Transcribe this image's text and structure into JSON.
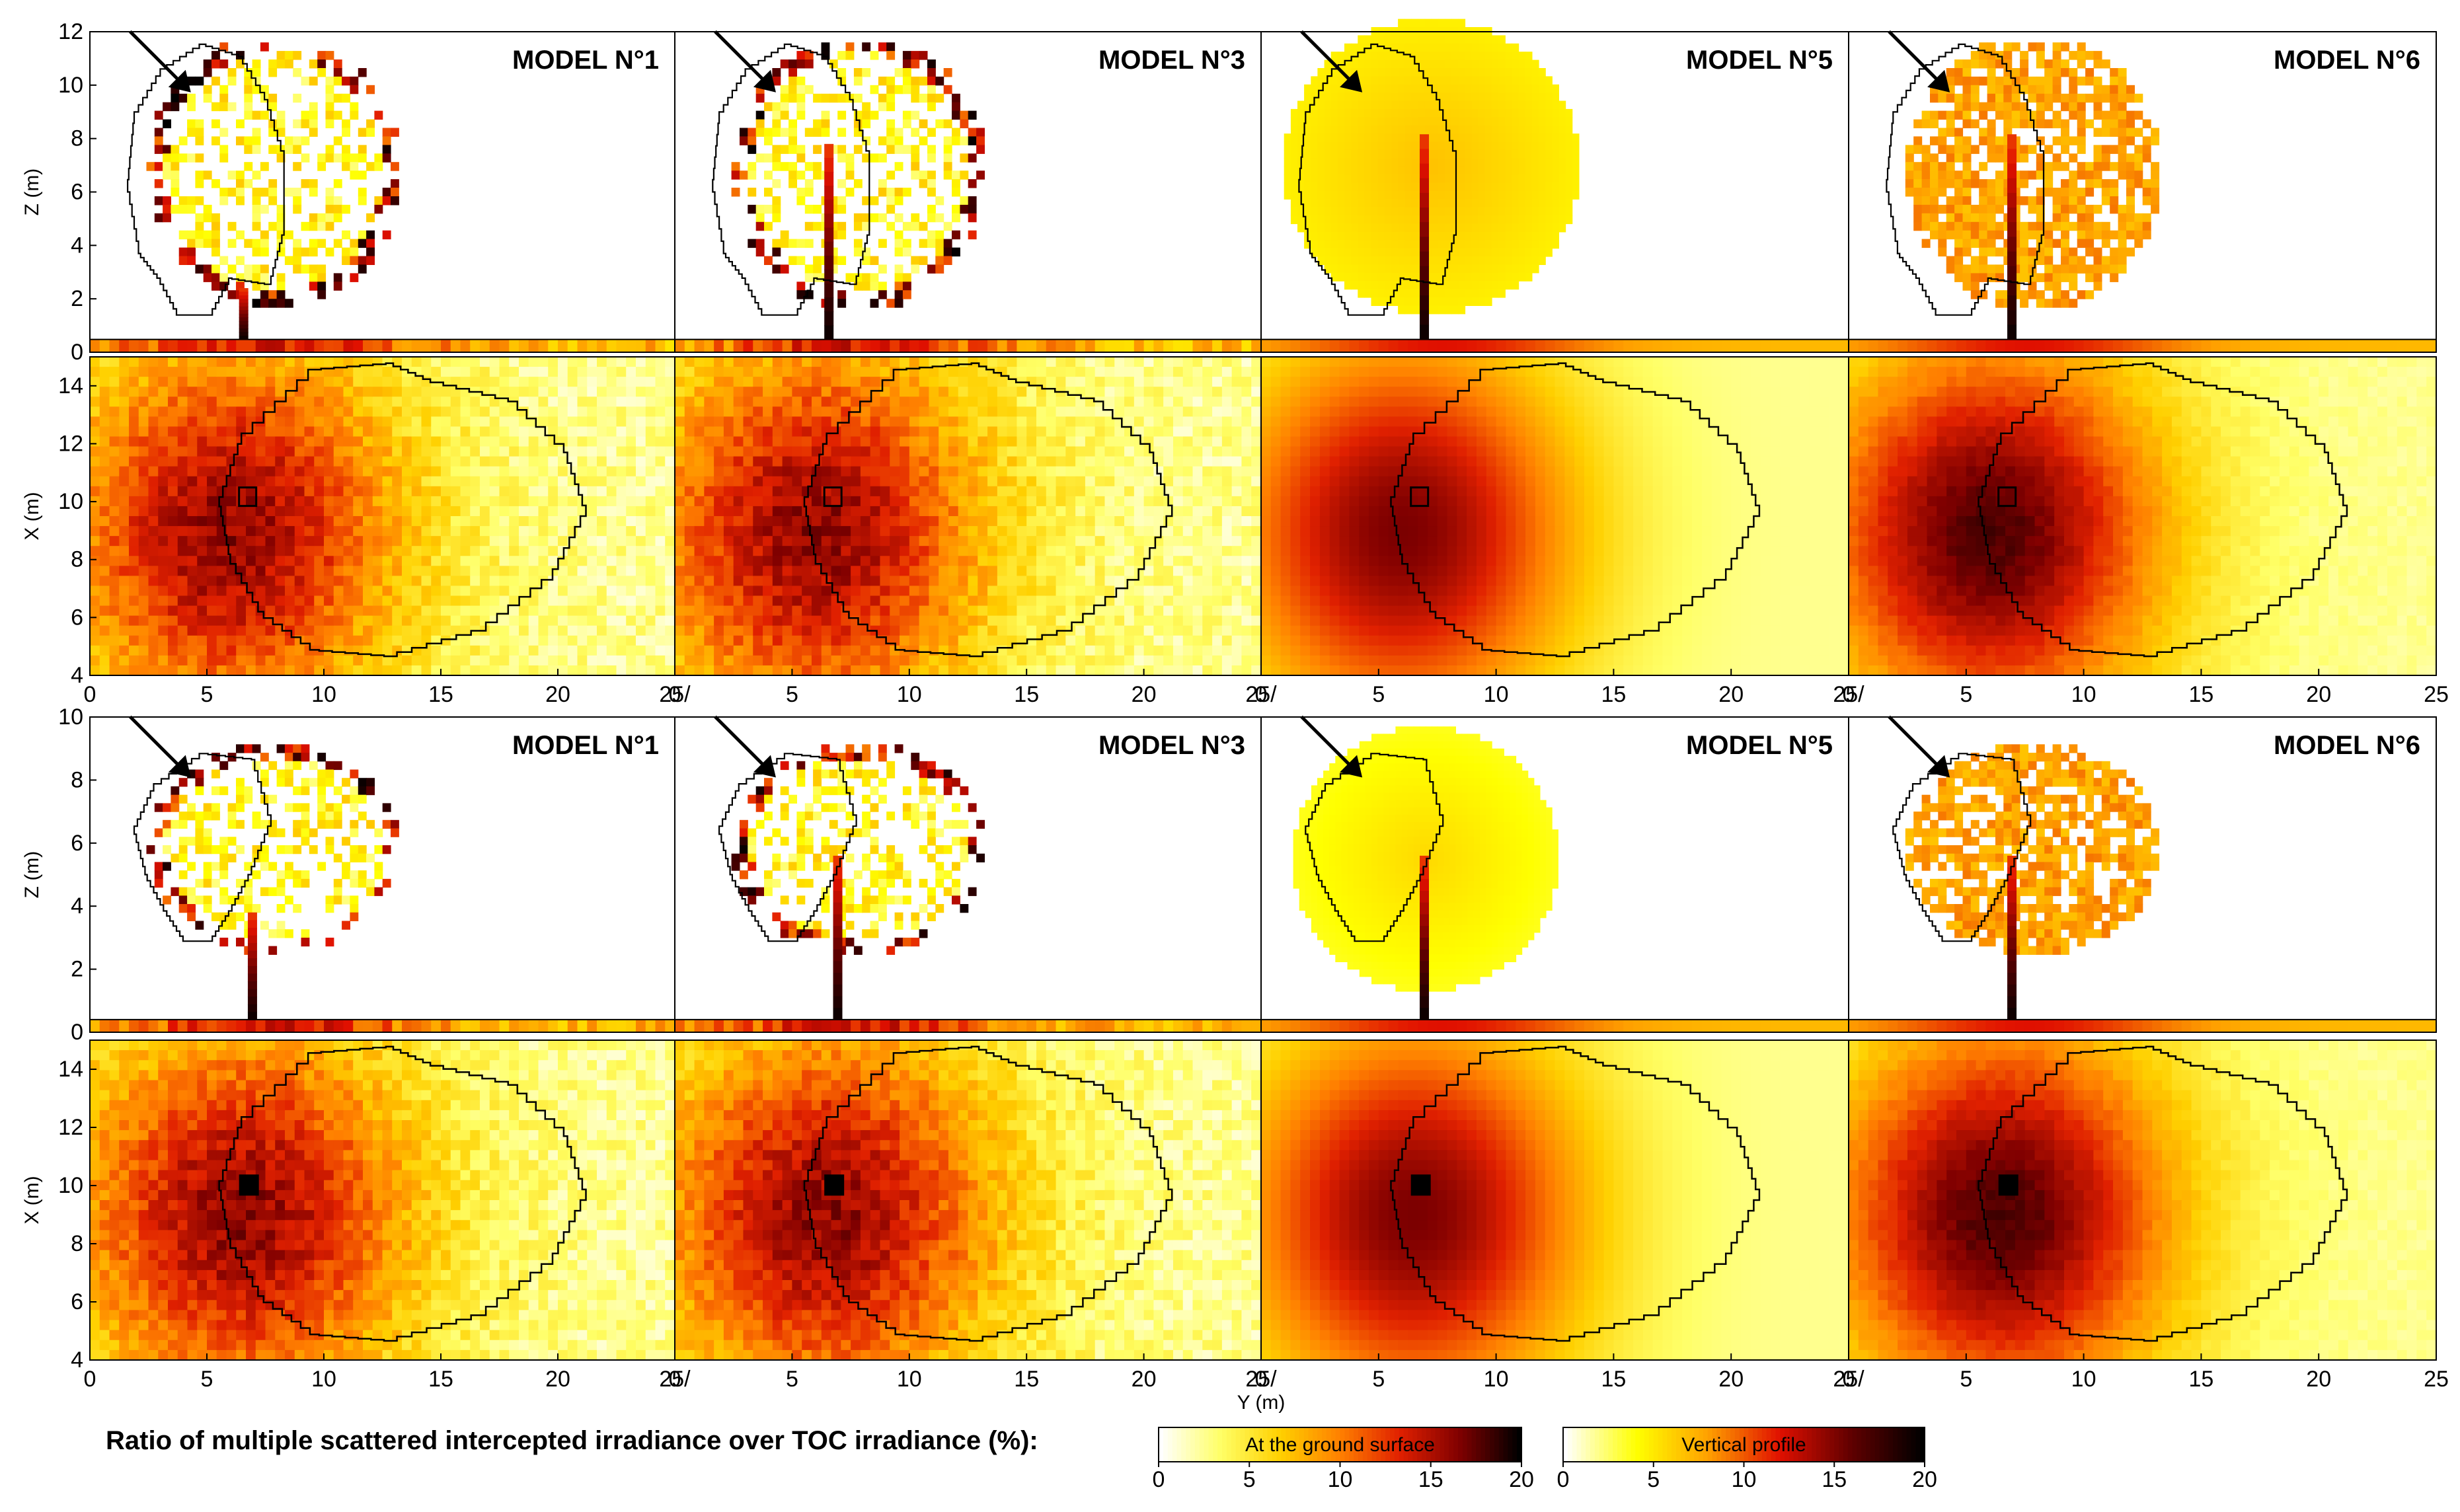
{
  "chart_data": {
    "type": "heatmap",
    "title": "Ratio of multiple scattered intercepted irradiance over TOC irradiance (%):",
    "model_labels": [
      "MODEL N°1",
      "MODEL N°3",
      "MODEL N°5",
      "MODEL N°6"
    ],
    "ylabel_side": "Z (m)",
    "ylabel_top": "X (m)",
    "xlabel": "Y (m)",
    "rows": [
      {
        "kind": "side",
        "ylim": [
          0,
          12
        ],
        "y_ticks": [
          "0",
          "2",
          "4",
          "6",
          "8",
          "10",
          "12"
        ],
        "y_tick_values": [
          0,
          2,
          4,
          6,
          8,
          10,
          12
        ]
      },
      {
        "kind": "top",
        "ylim": [
          4,
          15
        ],
        "y_ticks": [
          "4",
          "6",
          "8",
          "10",
          "12",
          "14"
        ],
        "y_tick_values": [
          4,
          6,
          8,
          10,
          12,
          14
        ],
        "x_ticks": [
          "0",
          "5",
          "10",
          "15",
          "20",
          "25/",
          "0",
          "5",
          "10",
          "15",
          "20",
          "25/",
          "0",
          "5",
          "10",
          "15",
          "20",
          "25/",
          "0",
          "5",
          "10",
          "15",
          "20",
          "25"
        ]
      },
      {
        "kind": "side",
        "ylim": [
          0,
          10
        ],
        "y_ticks": [
          "0",
          "2",
          "4",
          "6",
          "8",
          "10"
        ],
        "y_tick_values": [
          0,
          2,
          4,
          6,
          8,
          10
        ]
      },
      {
        "kind": "top",
        "ylim": [
          4,
          15
        ],
        "y_ticks": [
          "4",
          "6",
          "8",
          "10",
          "12",
          "14"
        ],
        "y_tick_values": [
          4,
          6,
          8,
          10,
          12,
          14
        ],
        "x_ticks": [
          "0",
          "5",
          "10",
          "15",
          "20",
          "25/",
          "0",
          "5",
          "10",
          "15",
          "20",
          "25/",
          "0",
          "5",
          "10",
          "15",
          "20",
          "25/",
          "0",
          "5",
          "10",
          "15",
          "20",
          "25"
        ]
      }
    ],
    "xlim": [
      0,
      25
    ],
    "x_tick_values": [
      0,
      5,
      10,
      15,
      20,
      25
    ],
    "colorbars": [
      {
        "label": "At the ground surface",
        "ticks": [
          "0",
          "5",
          "10",
          "15",
          "20"
        ],
        "range": [
          0,
          20
        ],
        "colors": [
          "#ffffff",
          "#ffff66",
          "#ffd000",
          "#ff8000",
          "#e02000",
          "#800000",
          "#000000"
        ]
      },
      {
        "label": "Vertical profile",
        "ticks": [
          "0",
          "5",
          "10",
          "15",
          "20"
        ],
        "range": [
          0,
          20
        ],
        "colors": [
          "#ffffff",
          "#ffff00",
          "#ffa000",
          "#e01000",
          "#600000",
          "#000000"
        ]
      }
    ]
  }
}
